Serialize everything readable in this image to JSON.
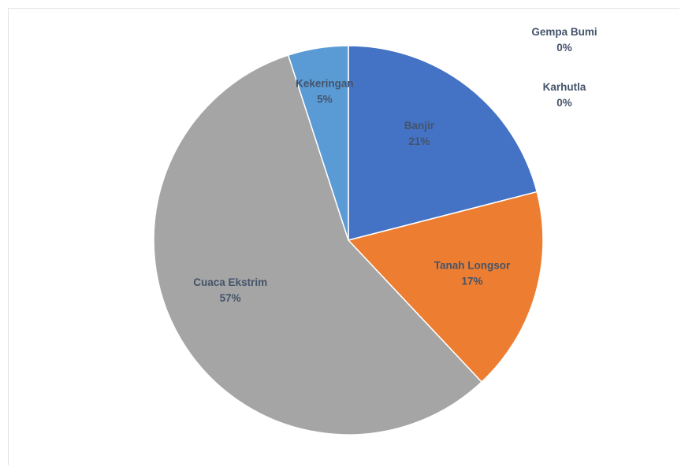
{
  "chart_data": {
    "type": "pie",
    "title": "",
    "start_angle_deg": 0,
    "direction": "clockwise",
    "slices": [
      {
        "label": "Banjir",
        "value": 21,
        "display": "21%",
        "color": "#4472c4"
      },
      {
        "label": "Tanah Longsor",
        "value": 17,
        "display": "17%",
        "color": "#ed7d31"
      },
      {
        "label": "Cuaca Ekstrim",
        "value": 57,
        "display": "57%",
        "color": "#a5a5a5"
      },
      {
        "label": "Kekeringan",
        "value": 5,
        "display": "5%",
        "color": "#5b9bd5"
      },
      {
        "label": "Gempa Bumi",
        "value": 0,
        "display": "0%",
        "color": "#ffc000"
      },
      {
        "label": "Karhutla",
        "value": 0,
        "display": "0%",
        "color": "#70ad47"
      }
    ],
    "legend": "none",
    "data_labels": "category and percentage"
  }
}
